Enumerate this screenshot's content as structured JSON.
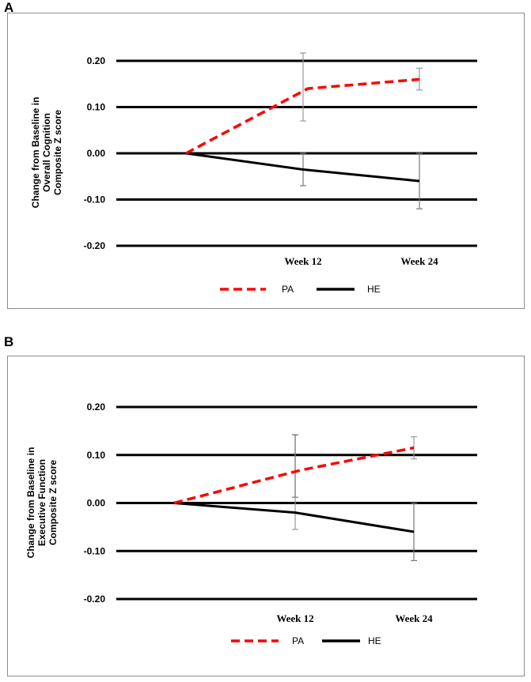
{
  "chart_data": [
    {
      "panel": "A",
      "type": "line",
      "ylabel_lines": [
        "Change from Baseline in",
        "Overall Cognition",
        "Composite Z score"
      ],
      "categories": [
        "",
        "Week 12",
        "Week 24"
      ],
      "yticks": [
        "0.20",
        "0.10",
        "0.00",
        "-0.10",
        "-0.20"
      ],
      "ylim": [
        -0.2,
        0.2
      ],
      "grid": true,
      "series": [
        {
          "name": "PA",
          "color": "#ff0000",
          "style": "dashed",
          "values": [
            0.0,
            0.14,
            0.16
          ],
          "err_low": [
            null,
            0.07,
            0.137
          ],
          "err_high": [
            null,
            0.217,
            0.184
          ]
        },
        {
          "name": "HE",
          "color": "#000000",
          "style": "solid",
          "values": [
            0.0,
            -0.035,
            -0.06
          ],
          "err_low": [
            null,
            -0.07,
            -0.12
          ],
          "err_high": [
            null,
            0.0,
            0.0
          ]
        }
      ],
      "legend": [
        "PA",
        "HE"
      ]
    },
    {
      "panel": "B",
      "type": "line",
      "ylabel_lines": [
        "Change from Baseline in",
        "Executive Function",
        "Composite Z score"
      ],
      "categories": [
        "",
        "Week 12",
        "Week 24"
      ],
      "yticks": [
        "0.20",
        "0.10",
        "0.00",
        "-0.10",
        "-0.20"
      ],
      "ylim": [
        -0.2,
        0.2
      ],
      "grid": true,
      "series": [
        {
          "name": "PA",
          "color": "#ff0000",
          "style": "dashed",
          "values": [
            0.0,
            0.068,
            0.115
          ],
          "err_low": [
            null,
            -0.055,
            0.092
          ],
          "err_high": [
            null,
            0.142,
            0.138
          ]
        },
        {
          "name": "HE",
          "color": "#000000",
          "style": "solid",
          "values": [
            0.0,
            -0.02,
            -0.06
          ],
          "err_low": [
            null,
            0.012,
            -0.12
          ],
          "err_high": [
            null,
            0.142,
            0.0
          ]
        }
      ],
      "legend": [
        "PA",
        "HE"
      ]
    }
  ]
}
